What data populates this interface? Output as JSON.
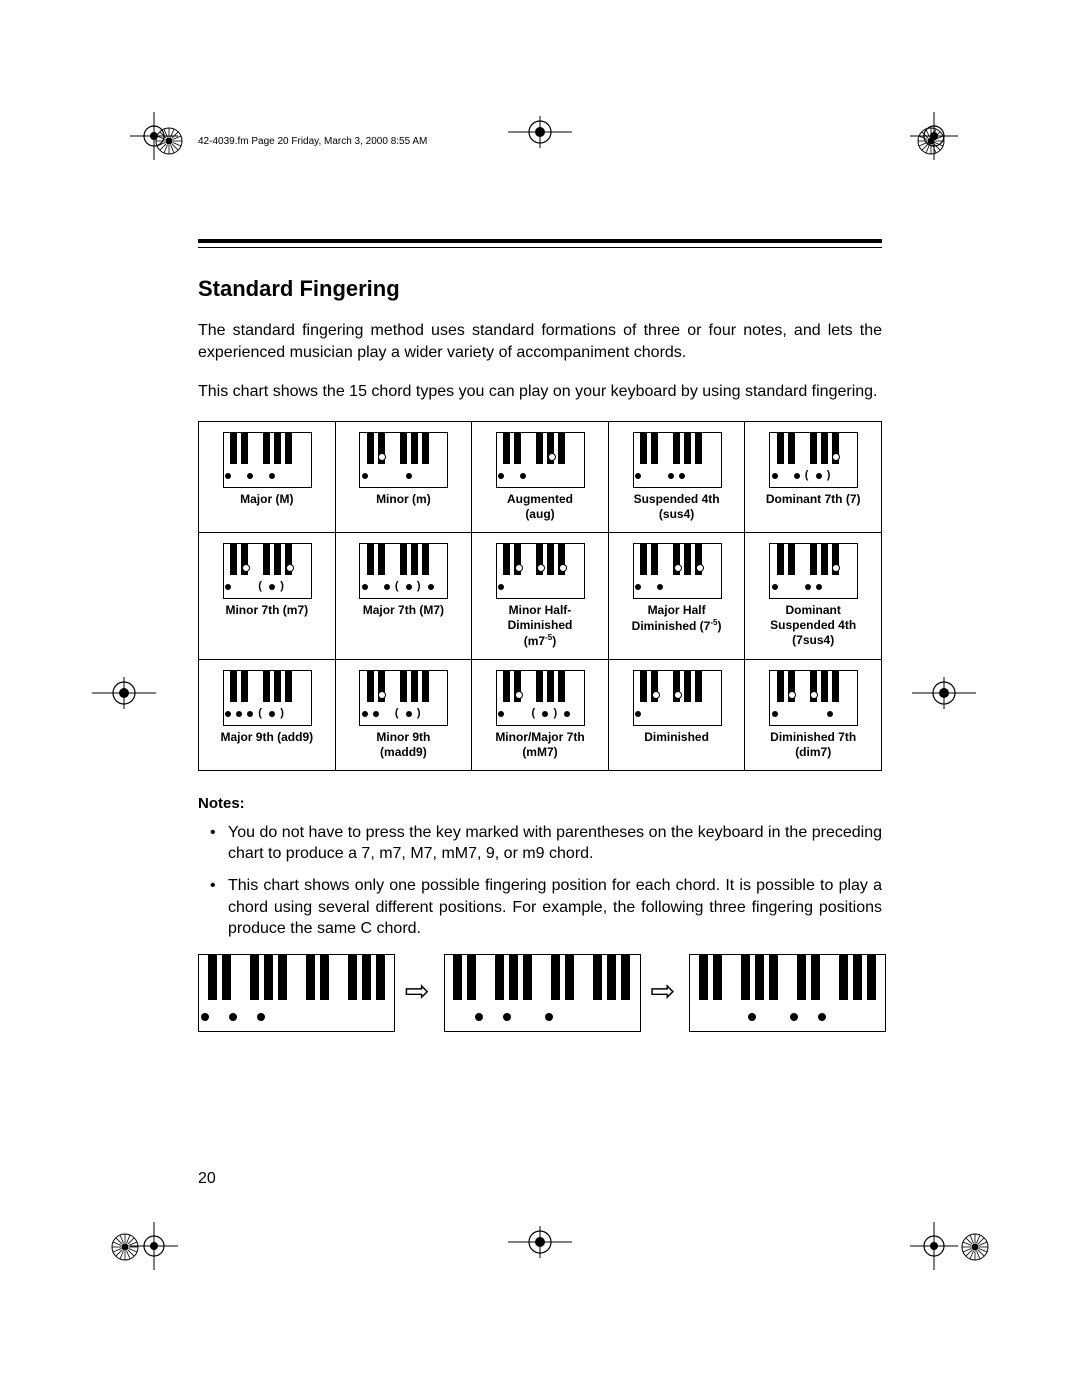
{
  "page": {
    "running_head": "42-4039.fm  Page 20  Friday, March 3, 2000  8:55 AM",
    "section_title": "Standard Fingering",
    "para1": "The standard fingering method uses standard formations of three or four notes, and lets the experienced musician play a wider variety of accompaniment chords.",
    "para2": "This chart shows the 15 chord types you can play on your keyboard by using standard fingering.",
    "notes_heading": "Notes:",
    "note1": "You do not have to press the key marked with parentheses on the keyboard in the preceding chart to produce a 7, m7, M7, mM7, 9, or m9 chord.",
    "note2": "This chart shows only one possible fingering position for each chord. It is possible to play a chord using several different positions. For example, the following three fingering positions produce the same C chord.",
    "page_number": "20"
  },
  "colors": {
    "ink": "#000000",
    "paper": "#ffffff"
  },
  "kb_small": {
    "whites": 8,
    "white_w": 11,
    "height": 54,
    "black_w": 7,
    "black_h": 32,
    "black_at_gap": [
      0,
      1,
      3,
      4,
      5
    ],
    "dot_d": 6,
    "dot_y_white": 44,
    "dot_y_black": 24
  },
  "kb_big": {
    "whites": 14,
    "white_w": 14,
    "height": 76,
    "black_w": 9,
    "black_h": 46,
    "black_at_gap": [
      0,
      1,
      3,
      4,
      5,
      7,
      8,
      10,
      11,
      12
    ],
    "dot_d": 8,
    "dot_y_white": 63
  },
  "chords": [
    [
      {
        "label": "Major (M)",
        "marks": [
          {
            "t": "w",
            "i": 0
          },
          {
            "t": "w",
            "i": 2
          },
          {
            "t": "w",
            "i": 4
          }
        ]
      },
      {
        "label": "Minor (m)",
        "marks": [
          {
            "t": "w",
            "i": 0
          },
          {
            "t": "b",
            "g": 1
          },
          {
            "t": "w",
            "i": 4
          }
        ]
      },
      {
        "label": "Augmented<br>(aug)",
        "marks": [
          {
            "t": "w",
            "i": 0
          },
          {
            "t": "w",
            "i": 2
          },
          {
            "t": "b",
            "g": 4
          }
        ]
      },
      {
        "label": "Suspended 4th<br>(sus4)",
        "marks": [
          {
            "t": "w",
            "i": 0
          },
          {
            "t": "w",
            "i": 3
          },
          {
            "t": "w",
            "i": 4
          }
        ]
      },
      {
        "label": "Dominant 7th (7)",
        "marks": [
          {
            "t": "w",
            "i": 0
          },
          {
            "t": "w",
            "i": 2
          },
          {
            "t": "pl",
            "i": 3
          },
          {
            "t": "w",
            "i": 4
          },
          {
            "t": "pr",
            "i": 5
          },
          {
            "t": "b",
            "g": 5
          }
        ]
      }
    ],
    [
      {
        "label": "Minor 7th (m7)",
        "marks": [
          {
            "t": "w",
            "i": 0
          },
          {
            "t": "b",
            "g": 1
          },
          {
            "t": "pl",
            "i": 3
          },
          {
            "t": "w",
            "i": 4
          },
          {
            "t": "pr",
            "i": 5
          },
          {
            "t": "b",
            "g": 5
          }
        ]
      },
      {
        "label": "Major 7th (M7)",
        "marks": [
          {
            "t": "w",
            "i": 0
          },
          {
            "t": "w",
            "i": 2
          },
          {
            "t": "pl",
            "i": 3
          },
          {
            "t": "w",
            "i": 4
          },
          {
            "t": "pr",
            "i": 5
          },
          {
            "t": "w",
            "i": 6
          }
        ]
      },
      {
        "label": "Minor Half-<br>Diminished<br>(m7<sup>-5</sup>)",
        "marks": [
          {
            "t": "w",
            "i": 0
          },
          {
            "t": "b",
            "g": 1
          },
          {
            "t": "b",
            "g": 3
          },
          {
            "t": "b",
            "g": 5
          }
        ]
      },
      {
        "label": "Major Half<br>Diminished (7<sup>-5</sup>)",
        "marks": [
          {
            "t": "w",
            "i": 0
          },
          {
            "t": "w",
            "i": 2
          },
          {
            "t": "b",
            "g": 3
          },
          {
            "t": "b",
            "g": 5
          }
        ]
      },
      {
        "label": "Dominant<br>Suspended 4th<br>(7sus4)",
        "marks": [
          {
            "t": "w",
            "i": 0
          },
          {
            "t": "w",
            "i": 3
          },
          {
            "t": "w",
            "i": 4
          },
          {
            "t": "b",
            "g": 5
          }
        ]
      }
    ],
    [
      {
        "label": "Major 9th (add9)",
        "marks": [
          {
            "t": "w",
            "i": 0
          },
          {
            "t": "w",
            "i": 1
          },
          {
            "t": "w",
            "i": 2
          },
          {
            "t": "pl",
            "i": 3
          },
          {
            "t": "w",
            "i": 4
          },
          {
            "t": "pr",
            "i": 5
          }
        ]
      },
      {
        "label": "Minor 9th<br>(madd9)",
        "marks": [
          {
            "t": "w",
            "i": 0
          },
          {
            "t": "w",
            "i": 1
          },
          {
            "t": "b",
            "g": 1
          },
          {
            "t": "pl",
            "i": 3
          },
          {
            "t": "w",
            "i": 4
          },
          {
            "t": "pr",
            "i": 5
          }
        ]
      },
      {
        "label": "Minor/Major 7th<br>(mM7)",
        "marks": [
          {
            "t": "w",
            "i": 0
          },
          {
            "t": "b",
            "g": 1
          },
          {
            "t": "pl",
            "i": 3
          },
          {
            "t": "w",
            "i": 4
          },
          {
            "t": "pr",
            "i": 5
          },
          {
            "t": "w",
            "i": 6
          }
        ]
      },
      {
        "label": "Diminished",
        "marks": [
          {
            "t": "w",
            "i": 0
          },
          {
            "t": "b",
            "g": 1
          },
          {
            "t": "b",
            "g": 3
          }
        ]
      },
      {
        "label": "Diminished 7th<br>(dim7)",
        "marks": [
          {
            "t": "w",
            "i": 0
          },
          {
            "t": "b",
            "g": 1
          },
          {
            "t": "b",
            "g": 3
          },
          {
            "t": "w",
            "i": 5
          }
        ]
      }
    ]
  ],
  "inversions": [
    {
      "marks": [
        {
          "t": "w",
          "i": 0
        },
        {
          "t": "w",
          "i": 2
        },
        {
          "t": "w",
          "i": 4
        }
      ]
    },
    {
      "marks": [
        {
          "t": "w",
          "i": 2
        },
        {
          "t": "w",
          "i": 4
        },
        {
          "t": "w",
          "i": 7
        }
      ]
    },
    {
      "marks": [
        {
          "t": "w",
          "i": 4
        },
        {
          "t": "w",
          "i": 7
        },
        {
          "t": "w",
          "i": 9
        }
      ]
    }
  ]
}
